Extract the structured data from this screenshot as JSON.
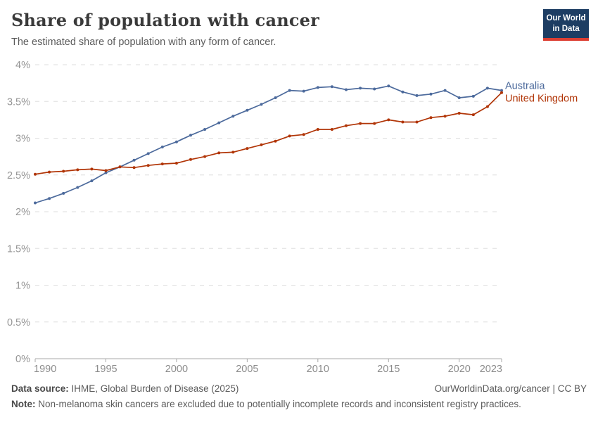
{
  "header": {
    "title": "Share of population with cancer",
    "subtitle": "The estimated share of population with any form of cancer.",
    "logo": {
      "line1": "Our World",
      "line2": "in Data",
      "bg_color": "#1d3d63",
      "accent_color": "#dc3e32"
    }
  },
  "chart_data": {
    "type": "line",
    "title": "Share of population with cancer",
    "x": [
      1990,
      1991,
      1992,
      1993,
      1994,
      1995,
      1996,
      1997,
      1998,
      1999,
      2000,
      2001,
      2002,
      2003,
      2004,
      2005,
      2006,
      2007,
      2008,
      2009,
      2010,
      2011,
      2012,
      2013,
      2014,
      2015,
      2016,
      2017,
      2018,
      2019,
      2020,
      2021,
      2022,
      2023
    ],
    "series": [
      {
        "name": "Australia",
        "color": "#4C6A9C",
        "values": [
          2.12,
          2.18,
          2.25,
          2.33,
          2.42,
          2.53,
          2.61,
          2.7,
          2.79,
          2.88,
          2.95,
          3.04,
          3.12,
          3.21,
          3.3,
          3.38,
          3.46,
          3.55,
          3.65,
          3.64,
          3.69,
          3.7,
          3.66,
          3.68,
          3.67,
          3.71,
          3.63,
          3.58,
          3.6,
          3.65,
          3.55,
          3.57,
          3.68,
          3.65
        ]
      },
      {
        "name": "United Kingdom",
        "color": "#B13507",
        "values": [
          2.51,
          2.54,
          2.55,
          2.57,
          2.58,
          2.56,
          2.61,
          2.6,
          2.63,
          2.65,
          2.66,
          2.71,
          2.75,
          2.8,
          2.81,
          2.86,
          2.91,
          2.96,
          3.03,
          3.05,
          3.12,
          3.12,
          3.17,
          3.2,
          3.2,
          3.25,
          3.22,
          3.22,
          3.28,
          3.3,
          3.34,
          3.32,
          3.43,
          3.62
        ]
      }
    ],
    "xlabel": "",
    "ylabel": "",
    "ylim": [
      0,
      4
    ],
    "ytick_values": [
      0,
      0.5,
      1,
      1.5,
      2,
      2.5,
      3,
      3.5,
      4
    ],
    "ytick_labels": [
      "0%",
      "0.5%",
      "1%",
      "1.5%",
      "2%",
      "2.5%",
      "3%",
      "3.5%",
      "4%"
    ],
    "xtick_values": [
      1990,
      1995,
      2000,
      2005,
      2010,
      2015,
      2020,
      2023
    ],
    "xtick_labels": [
      "1990",
      "1995",
      "2000",
      "2005",
      "2010",
      "2015",
      "2020",
      "2023"
    ],
    "grid": "horizontal-dashed",
    "legend_position": "line-end-labels",
    "grid_color": "#dedede",
    "axis_color": "#a8a8a8",
    "tick_label_color": "#959595"
  },
  "footer": {
    "source_label": "Data source:",
    "source_text": " IHME, Global Burden of Disease (2025)",
    "license_text": "OurWorldinData.org/cancer | CC BY",
    "note_label": "Note:",
    "note_text": " Non-melanoma skin cancers are excluded due to potentially incomplete records and inconsistent registry practices."
  }
}
